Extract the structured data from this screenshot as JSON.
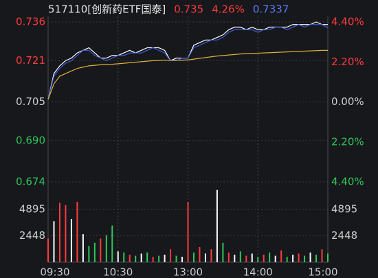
{
  "chart_data": [
    {
      "type": "line",
      "header": [
        {
          "text": "517110[创新药ETF国泰]",
          "color": "#e8e8e8"
        },
        {
          "text": "0.735",
          "color": "#ff3b3b"
        },
        {
          "text": "4.26%",
          "color": "#ff3b3b"
        },
        {
          "text": "0.7337",
          "color": "#5a7dff"
        }
      ],
      "categories": [
        "09:30",
        null,
        null,
        null,
        null,
        null,
        null,
        null,
        null,
        null,
        null,
        null,
        "10:30",
        null,
        null,
        null,
        null,
        null,
        null,
        null,
        null,
        null,
        null,
        null,
        "13:00",
        null,
        null,
        null,
        null,
        null,
        null,
        null,
        null,
        null,
        null,
        null,
        "14:00",
        null,
        null,
        null,
        null,
        null,
        null,
        null,
        null,
        null,
        null,
        null,
        "15:00"
      ],
      "series": [
        {
          "color": "#ffffff",
          "values": [
            0.706,
            0.716,
            0.719,
            0.721,
            0.722,
            0.724,
            0.725,
            0.726,
            0.724,
            0.722,
            0.722,
            0.723,
            0.723,
            0.724,
            0.725,
            0.724,
            0.725,
            0.726,
            0.726,
            0.726,
            0.725,
            0.721,
            0.722,
            0.722,
            0.722,
            0.727,
            0.728,
            0.729,
            0.729,
            0.73,
            0.731,
            0.733,
            0.734,
            0.734,
            0.733,
            0.734,
            0.733,
            0.733,
            0.734,
            0.734,
            0.734,
            0.734,
            0.735,
            0.735,
            0.735,
            0.735,
            0.736,
            0.735,
            0.735
          ]
        },
        {
          "color": "#3d5bd9",
          "values": [
            0.706,
            0.715,
            0.718,
            0.72,
            0.721,
            0.723,
            0.725,
            0.725,
            0.723,
            0.722,
            0.721,
            0.722,
            0.723,
            0.723,
            0.724,
            0.724,
            0.724,
            0.725,
            0.726,
            0.725,
            0.724,
            0.721,
            0.721,
            0.722,
            0.722,
            0.726,
            0.727,
            0.728,
            0.729,
            0.729,
            0.73,
            0.732,
            0.733,
            0.733,
            0.733,
            0.733,
            0.732,
            0.733,
            0.733,
            0.734,
            0.734,
            0.733,
            0.734,
            0.735,
            0.734,
            0.735,
            0.735,
            0.735,
            0.7337
          ]
        },
        {
          "color": "#d9b13b",
          "values": [
            0.706,
            0.712,
            0.715,
            0.716,
            0.717,
            0.718,
            0.7185,
            0.719,
            0.7192,
            0.7194,
            0.7195,
            0.7196,
            0.7198,
            0.72,
            0.7202,
            0.7204,
            0.7206,
            0.7208,
            0.721,
            0.7211,
            0.7212,
            0.7212,
            0.7212,
            0.7212,
            0.7213,
            0.7216,
            0.7219,
            0.7222,
            0.7225,
            0.7228,
            0.723,
            0.7232,
            0.7234,
            0.7236,
            0.7237,
            0.7238,
            0.7239,
            0.724,
            0.7241,
            0.7242,
            0.7243,
            0.7244,
            0.7245,
            0.7246,
            0.7247,
            0.7248,
            0.7249,
            0.725,
            0.725
          ]
        }
      ],
      "ylim": [
        0.674,
        0.736
      ],
      "yticks": [
        0.736,
        0.721,
        0.705,
        {
          "value": 0.69,
          "label": "0.690"
        },
        0.674
      ],
      "ytick_colors": [
        "#ff3b3b",
        "#ff3b3b",
        "#cccccc",
        "#2fc75a",
        "#2fc75a"
      ],
      "y2lim": [
        -4.4,
        4.4
      ],
      "y2ticks": [
        {
          "value": 4.4,
          "label": "4.40%"
        },
        {
          "value": 2.2,
          "label": "2.20%"
        },
        {
          "value": 0,
          "label": "0.00%"
        },
        {
          "value": -2.2,
          "label": "2.20%"
        },
        {
          "value": -4.4,
          "label": "4.40%"
        }
      ],
      "grid": true
    },
    {
      "type": "bar",
      "values": [
        2200,
        3800,
        5500,
        5300,
        4000,
        5600,
        2600,
        1500,
        1800,
        2200,
        2500,
        3400,
        1000,
        900,
        700,
        600,
        800,
        900,
        500,
        600,
        700,
        1200,
        600,
        500,
        5600,
        900,
        1400,
        800,
        1200,
        6700,
        1800,
        900,
        700,
        1000,
        600,
        800,
        500,
        700,
        900,
        600,
        1100,
        500,
        700,
        800,
        600,
        900,
        700,
        1200,
        800
      ],
      "colors": [
        "#ff3b3b",
        "#ffffff",
        "#ff3b3b",
        "#ff3b3b",
        "#ffffff",
        "#ff3b3b",
        "#ffffff",
        "#2fc75a",
        "#2fc75a",
        "#ff3b3b",
        "#2fc75a",
        "#2fc75a",
        "#ffffff",
        "#2fc75a",
        "#ff3b3b",
        "#2fc75a",
        "#ffffff",
        "#2fc75a",
        "#ff3b3b",
        "#2fc75a",
        "#ffffff",
        "#ff3b3b",
        "#2fc75a",
        "#ffffff",
        "#ff3b3b",
        "#2fc75a",
        "#ff3b3b",
        "#ffffff",
        "#ff3b3b",
        "#ffffff",
        "#2fc75a",
        "#ff3b3b",
        "#ffffff",
        "#2fc75a",
        "#ff3b3b",
        "#ffffff",
        "#2fc75a",
        "#ff3b3b",
        "#2fc75a",
        "#ffffff",
        "#ff3b3b",
        "#2fc75a",
        "#ffffff",
        "#ff3b3b",
        "#2fc75a",
        "#ffffff",
        "#2fc75a",
        "#ff3b3b",
        "#2fc75a"
      ],
      "ylim": [
        0,
        7000
      ],
      "yticks": [
        4895,
        2448
      ]
    }
  ]
}
